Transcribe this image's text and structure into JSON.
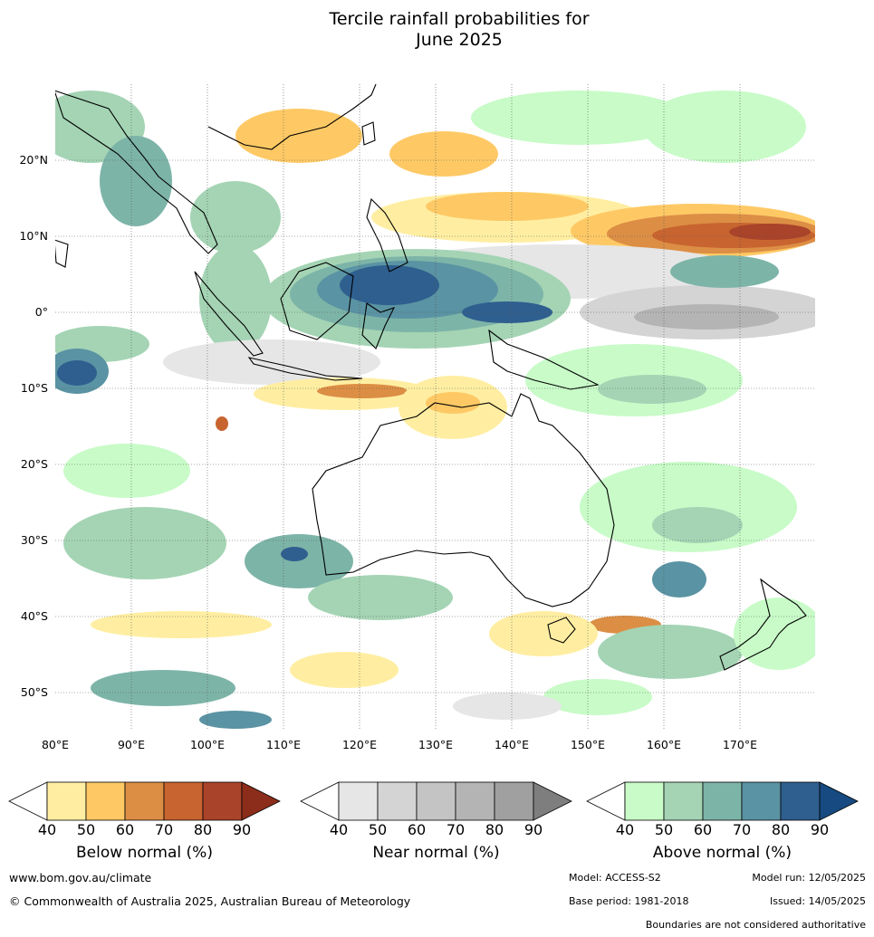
{
  "title": {
    "line1": "Tercile rainfall probabilities for",
    "line2": "June 2025"
  },
  "map": {
    "lon_ticks": [
      "80°E",
      "90°E",
      "100°E",
      "110°E",
      "120°E",
      "130°E",
      "140°E",
      "150°E",
      "160°E",
      "170°E"
    ],
    "lat_ticks": [
      "20°N",
      "10°N",
      "0°",
      "10°S",
      "20°S",
      "30°S",
      "40°S",
      "50°S"
    ]
  },
  "colorbars": [
    {
      "label": "Below normal (%)",
      "ticks": [
        "40",
        "50",
        "60",
        "70",
        "80",
        "90"
      ],
      "colors": [
        "#ffeea2",
        "#fec965",
        "#dc8e45",
        "#c8642f",
        "#a9432a",
        "#8b2d1a"
      ]
    },
    {
      "label": "Near normal (%)",
      "ticks": [
        "40",
        "50",
        "60",
        "70",
        "80",
        "90"
      ],
      "colors": [
        "#e6e6e6",
        "#d4d4d4",
        "#c4c4c4",
        "#b4b4b4",
        "#a0a0a0",
        "#7e7e7e"
      ]
    },
    {
      "label": "Above normal (%)",
      "ticks": [
        "40",
        "50",
        "60",
        "70",
        "80",
        "90"
      ],
      "colors": [
        "#c8fbc8",
        "#a4d4b4",
        "#7db4a8",
        "#5a93a3",
        "#2f5f8f",
        "#164a80"
      ]
    }
  ],
  "footer": {
    "website": "www.bom.gov.au/climate",
    "copyright": "© Commonwealth of Australia 2025, Australian Bureau of Meteorology",
    "model": "Model: ACCESS-S2",
    "model_run": "Model run: 12/05/2025",
    "base_period": "Base period: 1981-2018",
    "issued": "Issued: 14/05/2025",
    "disclaimer": "Boundaries are not considered authoritative"
  }
}
